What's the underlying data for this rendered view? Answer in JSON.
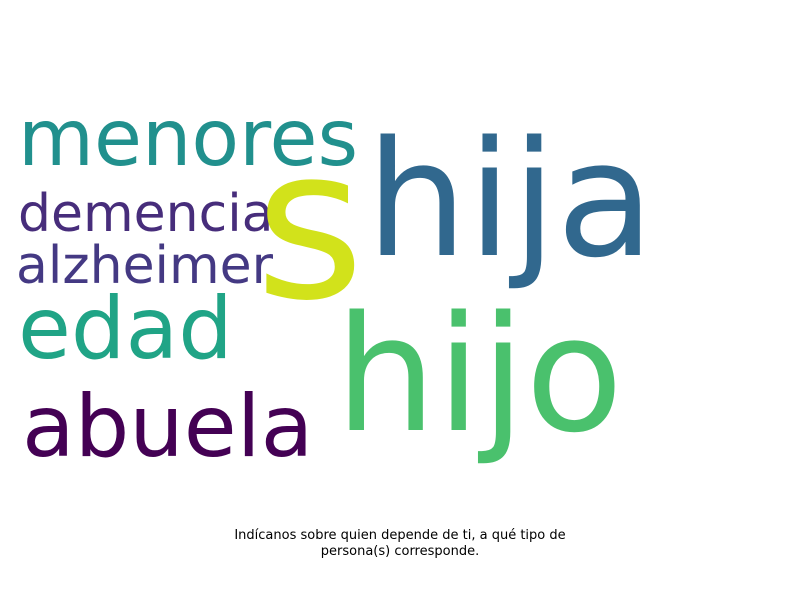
{
  "word_cloud": {
    "words": [
      {
        "key": "menores",
        "text": "menores",
        "color": "#21908d"
      },
      {
        "key": "demencia",
        "text": "demencia",
        "color": "#472d7b"
      },
      {
        "key": "alzheimer",
        "text": "alzheimer",
        "color": "#443983"
      },
      {
        "key": "edad",
        "text": "edad",
        "color": "#20a486"
      },
      {
        "key": "abuela",
        "text": "abuela",
        "color": "#440154"
      },
      {
        "key": "s",
        "text": "s",
        "color": "#d2e21b"
      },
      {
        "key": "hija",
        "text": "hija",
        "color": "#31688e"
      },
      {
        "key": "hijo",
        "text": "hijo",
        "color": "#4ac16d"
      }
    ]
  },
  "caption": {
    "line1": "Indícanos sobre quien depende de ti, a qué tipo de",
    "line2": "persona(s) corresponde."
  }
}
